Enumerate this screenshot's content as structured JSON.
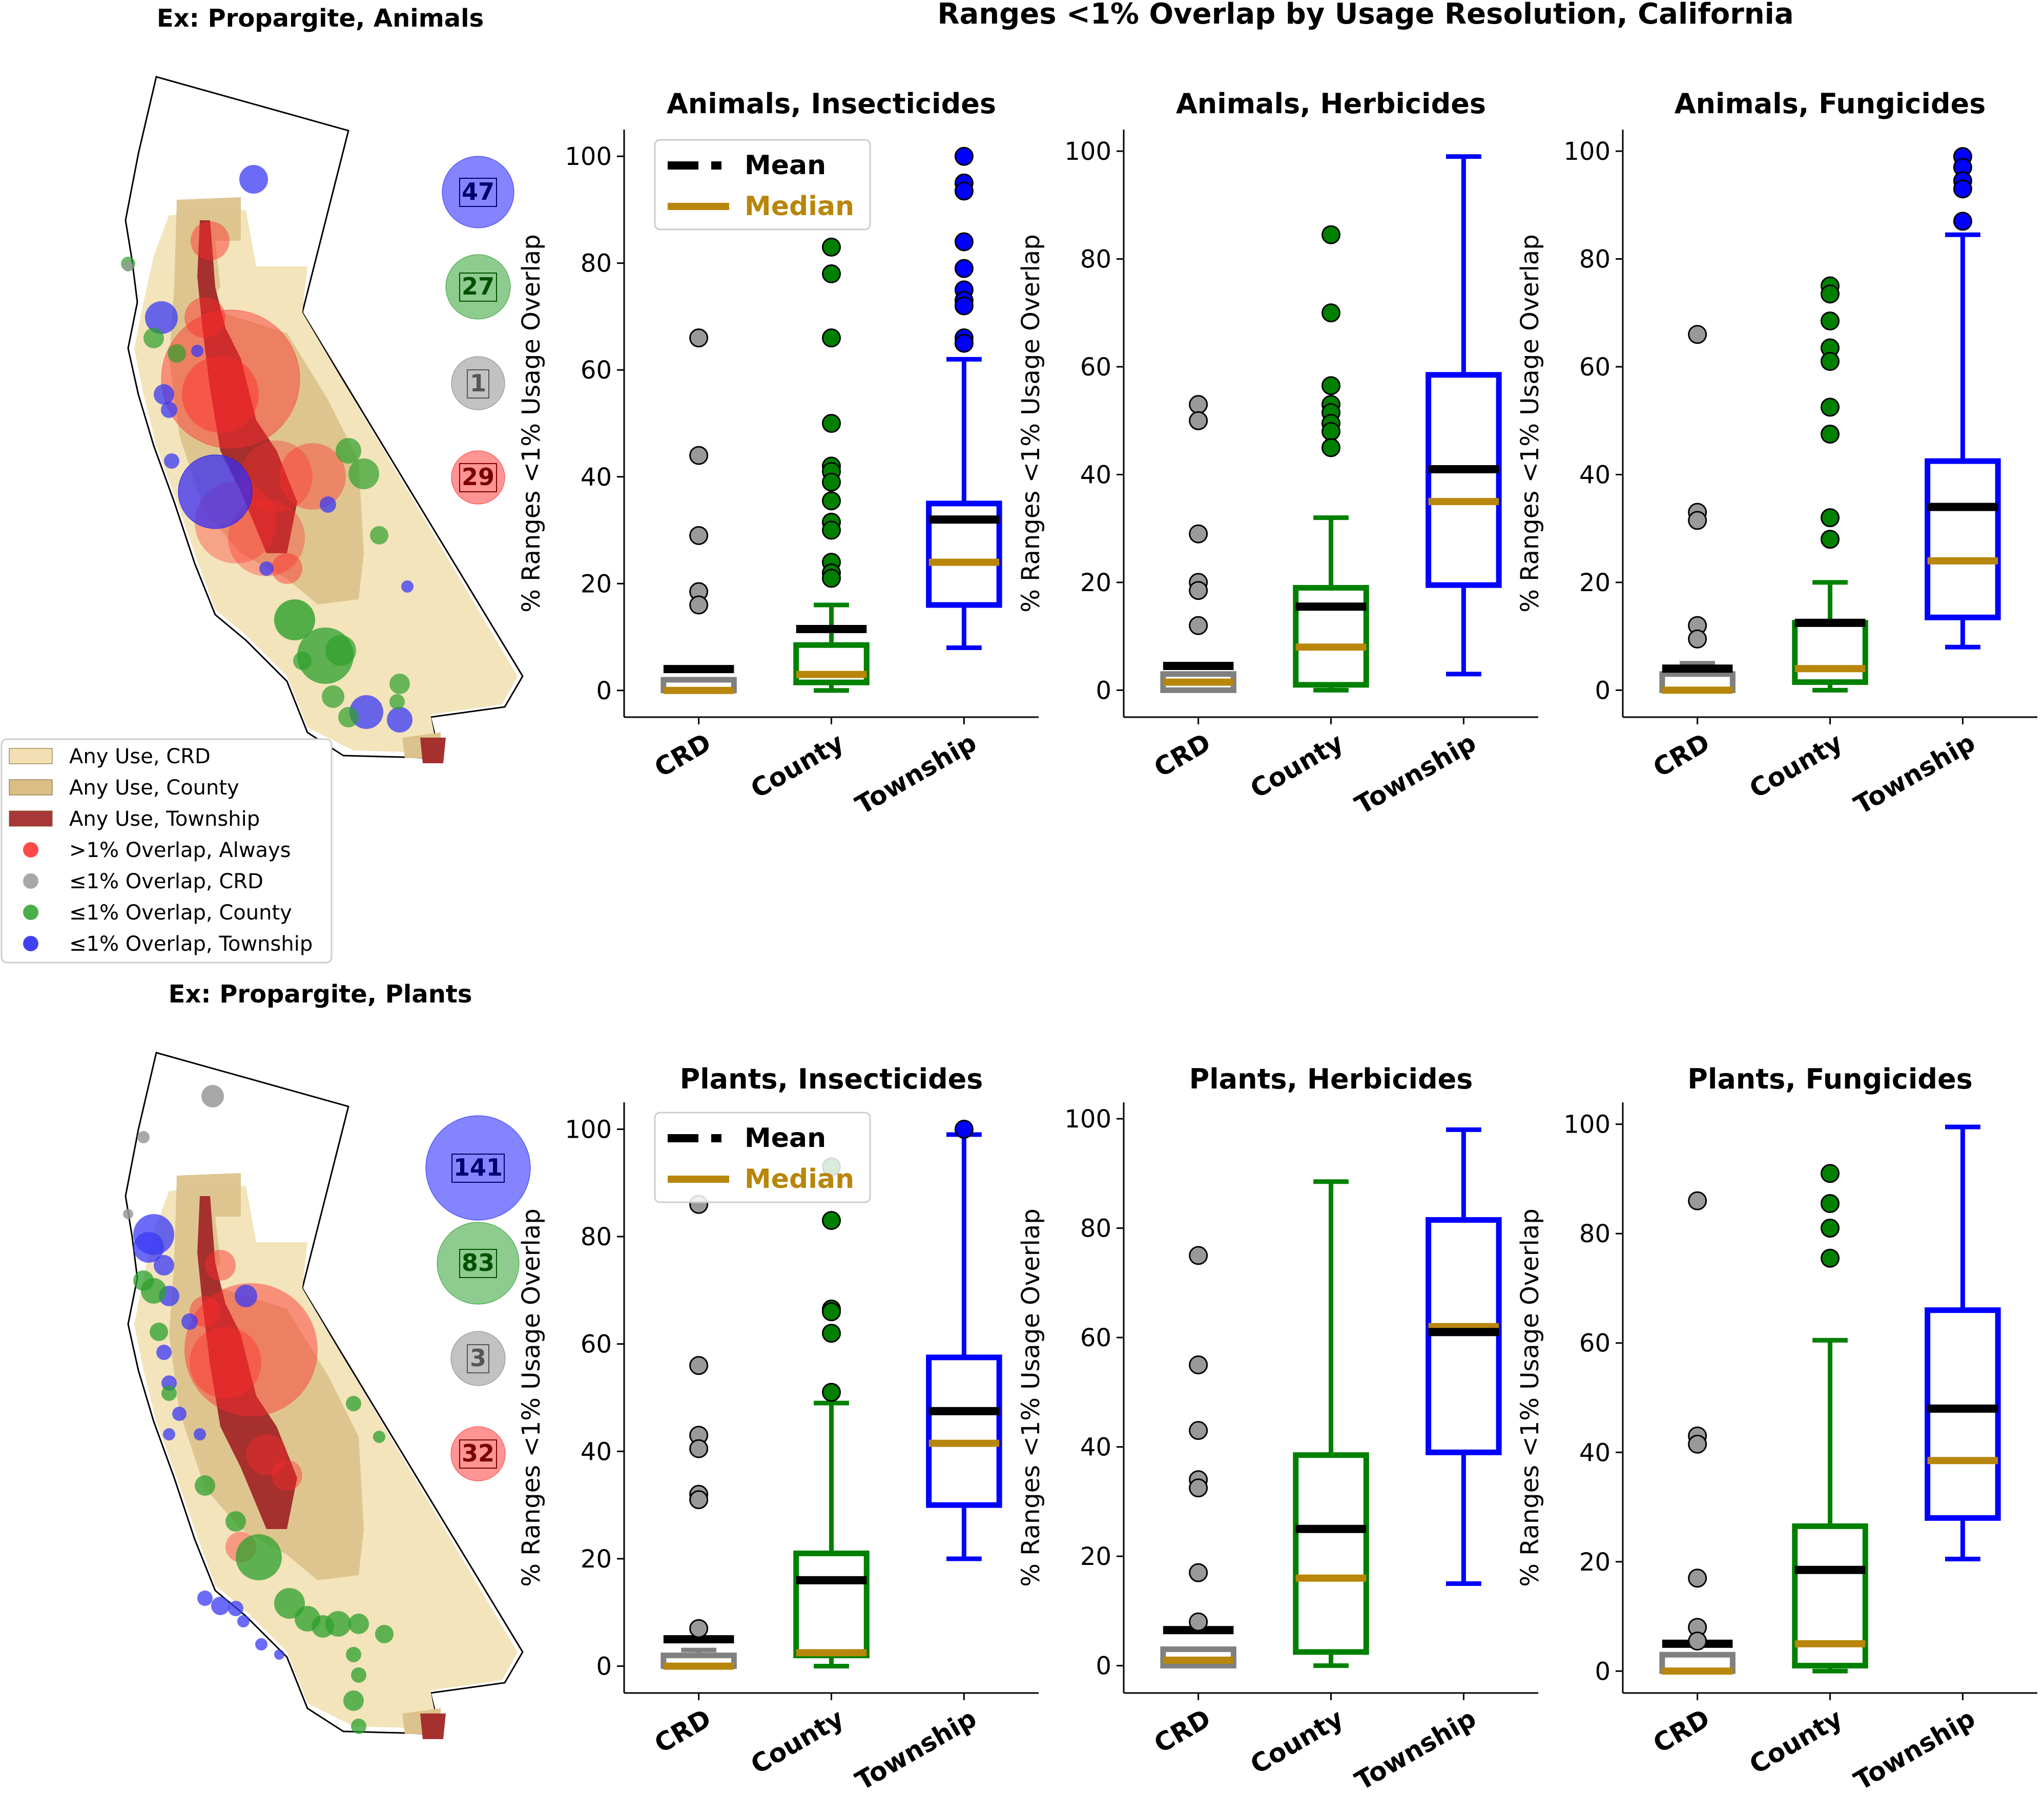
{
  "suptitle": "Ranges <1% Overlap by Usage Resolution, California",
  "maps": [
    {
      "title": "Ex: Propargite, Animals",
      "counts": [
        {
          "label": "47",
          "color": "#3232ff",
          "text_color": "#00006e"
        },
        {
          "label": "27",
          "color": "#32a032",
          "text_color": "#005000"
        },
        {
          "label": "1",
          "color": "#999999",
          "text_color": "#555555"
        },
        {
          "label": "29",
          "color": "#ff3c3c",
          "text_color": "#7a0000"
        }
      ]
    },
    {
      "title": "Ex: Propargite, Plants",
      "counts": [
        {
          "label": "141",
          "color": "#3232ff",
          "text_color": "#00006e"
        },
        {
          "label": "83",
          "color": "#32a032",
          "text_color": "#005000"
        },
        {
          "label": "3",
          "color": "#999999",
          "text_color": "#555555"
        },
        {
          "label": "32",
          "color": "#ff3c3c",
          "text_color": "#7a0000"
        }
      ]
    }
  ],
  "map_legend": [
    {
      "label": "Any Use, CRD",
      "kind": "patch",
      "color": "#f2e0b4"
    },
    {
      "label": "Any Use, County",
      "kind": "patch",
      "color": "#d9bf85"
    },
    {
      "label": "Any Use, Township",
      "kind": "patch",
      "color": "#a83838"
    },
    {
      "label": ">1% Overlap, Always",
      "kind": "dot",
      "color": "#ff2a2a"
    },
    {
      "label": "≤1% Overlap, CRD",
      "kind": "dot",
      "color": "#999999"
    },
    {
      "label": "≤1% Overlap, County",
      "kind": "dot",
      "color": "#2ca02c"
    },
    {
      "label": "≤1% Overlap, Township",
      "kind": "dot",
      "color": "#2020f0"
    }
  ],
  "box_legend": {
    "mean": "Mean",
    "median": "Median",
    "mean_color": "#000000",
    "median_color": "#b8860b"
  },
  "colors": {
    "CRD": "#808080",
    "County": "#008000",
    "Township": "#0000ff",
    "CRD_fill": "#999999",
    "County_fill": "#008000",
    "Township_fill": "#0000ff"
  },
  "chart_data": [
    {
      "type": "box",
      "title": "Animals, Insecticides",
      "ylabel": "% Ranges <1% Usage Overlap",
      "categories": [
        "CRD",
        "County",
        "Township"
      ],
      "ylim": [
        -5,
        105
      ],
      "yticks": [
        0,
        20,
        40,
        60,
        80,
        100
      ],
      "legend": true,
      "boxes": [
        {
          "q1": 0,
          "median": 0,
          "q3": 2,
          "whislo": 0,
          "whishi": 2,
          "mean": 4,
          "fliers": [
            66,
            44,
            29,
            18.5,
            16
          ]
        },
        {
          "q1": 1.5,
          "median": 3,
          "q3": 8.5,
          "whislo": 0,
          "whishi": 16,
          "mean": 11.5,
          "fliers": [
            83,
            78,
            66,
            50,
            42,
            41,
            39,
            35.5,
            31.5,
            30,
            24,
            22,
            21
          ]
        },
        {
          "q1": 16,
          "median": 24,
          "q3": 35,
          "whislo": 8,
          "whishi": 62,
          "mean": 32,
          "fliers": [
            100,
            95,
            93.5,
            84,
            79,
            75,
            73,
            72,
            66,
            65
          ]
        }
      ]
    },
    {
      "type": "box",
      "title": "Animals, Herbicides",
      "ylabel": "% Ranges <1% Usage Overlap",
      "categories": [
        "CRD",
        "County",
        "Township"
      ],
      "ylim": [
        -5,
        104
      ],
      "yticks": [
        0,
        20,
        40,
        60,
        80,
        100
      ],
      "legend": false,
      "boxes": [
        {
          "q1": 0,
          "median": 1.5,
          "q3": 3,
          "whislo": 0,
          "whishi": 3,
          "mean": 4.5,
          "fliers": [
            53,
            50,
            29,
            20,
            18.5,
            12
          ]
        },
        {
          "q1": 1,
          "median": 8,
          "q3": 19,
          "whislo": 0,
          "whishi": 32,
          "mean": 15.5,
          "fliers": [
            84.5,
            70,
            56.5,
            53,
            51.5,
            49.5,
            48,
            45
          ]
        },
        {
          "q1": 19.5,
          "median": 35,
          "q3": 58.5,
          "whislo": 3,
          "whishi": 99,
          "mean": 41,
          "fliers": []
        }
      ]
    },
    {
      "type": "box",
      "title": "Animals, Fungicides",
      "ylabel": "% Ranges <1% Usage Overlap",
      "categories": [
        "CRD",
        "County",
        "Township"
      ],
      "ylim": [
        -5,
        104
      ],
      "yticks": [
        0,
        20,
        40,
        60,
        80,
        100
      ],
      "legend": false,
      "boxes": [
        {
          "q1": 0,
          "median": 0,
          "q3": 3,
          "whislo": 0,
          "whishi": 5,
          "mean": 4,
          "fliers": [
            66,
            33,
            31.5,
            12,
            9.5
          ]
        },
        {
          "q1": 1.5,
          "median": 4,
          "q3": 12.5,
          "whislo": 0,
          "whishi": 20,
          "mean": 12.5,
          "fliers": [
            75,
            73.5,
            68.5,
            63.5,
            61,
            52.5,
            47.5,
            32,
            28
          ]
        },
        {
          "q1": 13.5,
          "median": 24,
          "q3": 42.5,
          "whislo": 8,
          "whishi": 84.5,
          "mean": 34,
          "fliers": [
            99,
            97,
            94.5,
            93,
            87
          ]
        }
      ]
    },
    {
      "type": "box",
      "title": "Plants, Insecticides",
      "ylabel": "% Ranges <1% Usage Overlap",
      "categories": [
        "CRD",
        "County",
        "Township"
      ],
      "ylim": [
        -5,
        105
      ],
      "yticks": [
        0,
        20,
        40,
        60,
        80,
        100
      ],
      "legend": true,
      "boxes": [
        {
          "q1": 0,
          "median": 0,
          "q3": 2,
          "whislo": 0,
          "whishi": 3,
          "mean": 5,
          "fliers": [
            86,
            56,
            43,
            40.5,
            32,
            31,
            7
          ]
        },
        {
          "q1": 2,
          "median": 2.5,
          "q3": 21,
          "whislo": 0,
          "whishi": 49,
          "mean": 16,
          "fliers": [
            93,
            83,
            66.5,
            66,
            62,
            51
          ]
        },
        {
          "q1": 30,
          "median": 41.5,
          "q3": 57.5,
          "whislo": 20,
          "whishi": 99,
          "mean": 47.5,
          "fliers": [
            100
          ]
        }
      ]
    },
    {
      "type": "box",
      "title": "Plants, Herbicides",
      "ylabel": "% Ranges <1% Usage Overlap",
      "categories": [
        "CRD",
        "County",
        "Township"
      ],
      "ylim": [
        -5,
        103
      ],
      "yticks": [
        0,
        20,
        40,
        60,
        80,
        100
      ],
      "legend": false,
      "boxes": [
        {
          "q1": 0,
          "median": 1,
          "q3": 3,
          "whislo": 0,
          "whishi": 3,
          "mean": 6.5,
          "fliers": [
            75,
            55,
            43,
            34,
            32.5,
            17,
            8
          ]
        },
        {
          "q1": 2.5,
          "median": 16,
          "q3": 38.5,
          "whislo": 0,
          "whishi": 88.5,
          "mean": 25,
          "fliers": []
        },
        {
          "q1": 39,
          "median": 62,
          "q3": 81.5,
          "whislo": 15,
          "whishi": 98,
          "mean": 61,
          "fliers": []
        }
      ]
    },
    {
      "type": "box",
      "title": "Plants, Fungicides",
      "ylabel": "% Ranges <1% Usage Overlap",
      "categories": [
        "CRD",
        "County",
        "Township"
      ],
      "ylim": [
        -4,
        104
      ],
      "yticks": [
        0,
        20,
        40,
        60,
        80,
        100
      ],
      "legend": false,
      "boxes": [
        {
          "q1": 0,
          "median": 0,
          "q3": 3,
          "whislo": 0,
          "whishi": 3,
          "mean": 5,
          "fliers": [
            86,
            43,
            41.5,
            17,
            8,
            5.5
          ]
        },
        {
          "q1": 1,
          "median": 5,
          "q3": 26.5,
          "whislo": 0,
          "whishi": 60.5,
          "mean": 18.5,
          "fliers": [
            91,
            85.5,
            81,
            75.5
          ]
        },
        {
          "q1": 28,
          "median": 38.5,
          "q3": 66,
          "whislo": 20.5,
          "whishi": 99.5,
          "mean": 48,
          "fliers": []
        }
      ]
    }
  ]
}
